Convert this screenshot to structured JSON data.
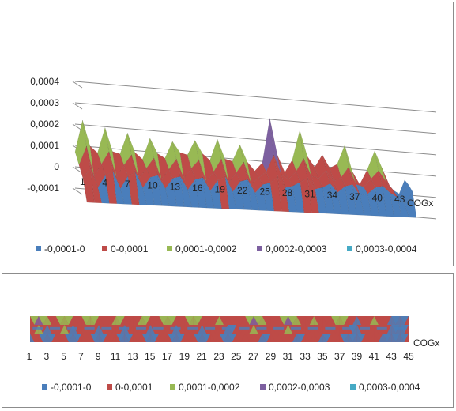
{
  "colors": {
    "band0": "#4a7ebb",
    "band1": "#be4b48",
    "band2": "#98b954",
    "band3": "#7d60a0",
    "band4": "#46aac5",
    "axis": "#8c8c8c"
  },
  "chart_data": [
    {
      "type": "area",
      "variant": "3d-surface",
      "title": "",
      "xlabel": "COGx",
      "ylabel": "",
      "ylim": [
        -0.0001,
        0.0004
      ],
      "yticks": [
        "0,0004",
        "0,0003",
        "0,0002",
        "0,0001",
        "0",
        "-0,0001"
      ],
      "xticks": [
        "1",
        "4",
        "7",
        "10",
        "13",
        "16",
        "19",
        "22",
        "25",
        "28",
        "31",
        "34",
        "37",
        "40",
        "43"
      ],
      "legend": [
        "-0,0001-0",
        "0-0,0001",
        "0,0001-0,0002",
        "0,0002-0,0003",
        "0,0003-0,0004"
      ],
      "legend_position": "bottom",
      "grid": true,
      "x": [
        1,
        2,
        3,
        4,
        5,
        6,
        7,
        8,
        9,
        10,
        11,
        12,
        13,
        14,
        15,
        16,
        17,
        18,
        19,
        20,
        21,
        22,
        23,
        24,
        25,
        26,
        27,
        28,
        29,
        30,
        31,
        32,
        33,
        34,
        35,
        36,
        37,
        38,
        39,
        40,
        41,
        42,
        43,
        44,
        45
      ],
      "series": [
        {
          "values": [
            7e-05,
            0.00022,
            0.0001,
            7e-05,
            0.00019,
            8e-05,
            7e-05,
            0.00017,
            8e-05,
            5e-05,
            0.00015,
            8e-05,
            6e-05,
            0.00014,
            9e-05,
            8e-05,
            0.00015,
            9e-05,
            6e-05,
            0.00016,
            7e-05,
            6e-05,
            0.00014,
            6e-05,
            2e-05,
            6e-05,
            0.00027,
            0.0001,
            2e-05,
            8e-05,
            0.00022,
            0.0001,
            5e-05,
            0.00011,
            5e-05,
            7e-05,
            0.00016,
            4e-05,
            -2e-05,
            5e-05,
            0.00014,
            6e-05,
            -2e-05,
            -8e-05,
            1e-05
          ]
        },
        {
          "values": [
            3e-05,
            0.00012,
            -2e-05,
            4e-05,
            0.0001,
            -2e-05,
            4e-05,
            9e-05,
            -2e-05,
            3e-05,
            8e-05,
            -2e-05,
            3e-05,
            8e-05,
            -1e-05,
            4e-05,
            8e-05,
            -2e-05,
            3e-05,
            9e-05,
            -2e-05,
            3e-05,
            8e-05,
            -2e-05,
            1e-05,
            4e-05,
            0.00012,
            3e-05,
            1e-05,
            5e-05,
            0.00011,
            3e-05,
            2e-05,
            6e-05,
            1e-05,
            3e-05,
            8e-05,
            0,
            -1e-05,
            3e-05,
            7e-05,
            2e-05,
            -2e-05,
            -4e-05,
            1e-05
          ]
        },
        {
          "values": [
            -1e-05,
            4e-05,
            -5e-05,
            1e-05,
            3e-05,
            -5e-05,
            1e-05,
            3e-05,
            -4e-05,
            1e-05,
            2e-05,
            -4e-05,
            1e-05,
            2e-05,
            -4e-05,
            1e-05,
            2e-05,
            -4e-05,
            1e-05,
            3e-05,
            -4e-05,
            1e-05,
            2e-05,
            -4e-05,
            0,
            1e-05,
            4e-05,
            -1e-05,
            0,
            2e-05,
            4e-05,
            -1e-05,
            0,
            2e-05,
            -2e-05,
            1e-05,
            2e-05,
            -3e-05,
            -2e-05,
            1e-05,
            2e-05,
            -1e-05,
            -3e-05,
            -6e-05,
            0
          ]
        }
      ]
    },
    {
      "type": "heatmap",
      "variant": "3d-surface-top-view",
      "title": "",
      "xlabel": "COGx",
      "ylabel": "",
      "xticks": [
        "1",
        "3",
        "5",
        "7",
        "9",
        "11",
        "13",
        "15",
        "17",
        "19",
        "21",
        "23",
        "25",
        "27",
        "29",
        "31",
        "33",
        "35",
        "37",
        "39",
        "41",
        "43",
        "45"
      ],
      "legend": [
        "-0,0001-0",
        "0-0,0001",
        "0,0001-0,0002",
        "0,0002-0,0003",
        "0,0003-0,0004"
      ],
      "legend_position": "bottom"
    }
  ]
}
